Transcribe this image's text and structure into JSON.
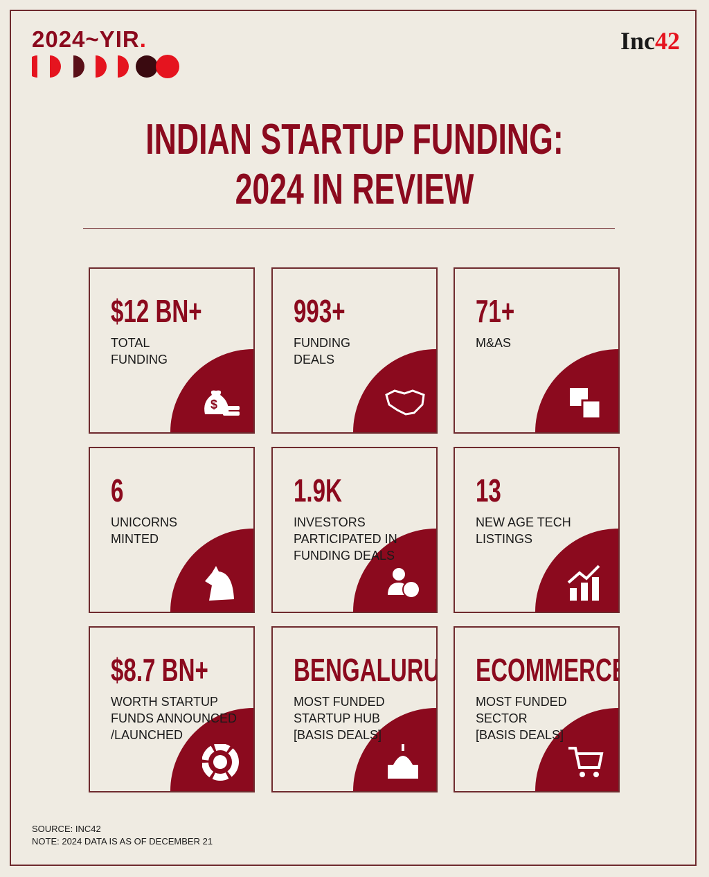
{
  "header": {
    "logo": "2024~YIR",
    "brand": {
      "name": "Inc",
      "number": "42"
    }
  },
  "title": [
    "INDIAN STARTUP FUNDING:",
    "2024 IN REVIEW"
  ],
  "cards": [
    {
      "value": "$12 BN+",
      "label": [
        "TOTAL",
        "FUNDING"
      ]
    },
    {
      "value": "993+",
      "label": [
        "FUNDING",
        "DEALS"
      ]
    },
    {
      "value": "71+",
      "label": [
        "M&AS"
      ]
    },
    {
      "value": "6",
      "label": [
        "UNICORNS",
        "MINTED"
      ]
    },
    {
      "value": "1.9K",
      "label": [
        "INVESTORS",
        "PARTICIPATED IN",
        "FUNDING DEALS"
      ]
    },
    {
      "value": "13",
      "label": [
        "NEW AGE TECH",
        "LISTINGS"
      ]
    },
    {
      "value": "$8.7 BN+",
      "label": [
        "WORTH STARTUP",
        "FUNDS ANNOUNCED",
        "/LAUNCHED"
      ]
    },
    {
      "value": "BENGALURU",
      "label": [
        "MOST FUNDED",
        "STARTUP HUB",
        "[BASIS DEALS]"
      ]
    },
    {
      "value": "ECOMMERCE",
      "label": [
        "MOST FUNDED",
        "SECTOR",
        "[BASIS DEALS]"
      ]
    }
  ],
  "footer": {
    "source": "SOURCE: INC42",
    "note": "NOTE: 2024 DATA IS AS OF DECEMBER 21"
  }
}
